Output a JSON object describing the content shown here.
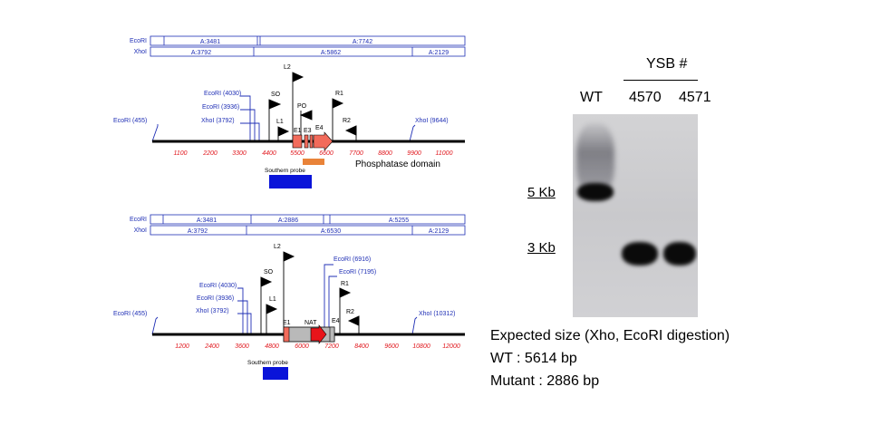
{
  "wt_map": {
    "ecori_track_label": "EcoRI",
    "xhoi_track_label": "XhoI",
    "ecori_fragments": [
      "A:3481",
      "A:7742"
    ],
    "xhoi_fragments": [
      "A:3792",
      "A:5862",
      "A:2129"
    ],
    "sites": {
      "ecori_455": "EcoRI (455)",
      "ecori_4030": "EcoRI (4030)",
      "ecori_3936": "EcoRI (3936)",
      "xhoi_3792": "XhoI (3792)",
      "xhoi_9644": "XhoI (9644)"
    },
    "primers": {
      "so": "SO",
      "l1": "L1",
      "l2": "L2",
      "po": "PO",
      "r1": "R1",
      "r2": "R2"
    },
    "exons": {
      "e1": "E1",
      "e3": "E3",
      "e4": "E4"
    },
    "ticks": [
      "1100",
      "2200",
      "3300",
      "4400",
      "5500",
      "6600",
      "7700",
      "8800",
      "9900",
      "11000"
    ],
    "domain_label": "Phosphatase domain",
    "probe_label": "Southern probe",
    "colors": {
      "probe": "#0a14d9",
      "exon": "#f26b5b",
      "domain_bar": "#e98339",
      "tick_text": "#e0151b",
      "site_text": "#1f2fb5"
    }
  },
  "mut_map": {
    "ecori_track_label": "EcoRI",
    "xhoi_track_label": "XhoI",
    "ecori_fragments": [
      "A:3481",
      "A:2886",
      "A:5255"
    ],
    "xhoi_fragments": [
      "A:3792",
      "A:6530",
      "A:2129"
    ],
    "sites": {
      "ecori_455": "EcoRI (455)",
      "ecori_4030": "EcoRI (4030)",
      "ecori_3936": "EcoRI (3936)",
      "xhoi_3792": "XhoI (3792)",
      "ecori_6916": "EcoRI (6916)",
      "ecori_7195": "EcoRI (7195)",
      "xhoi_10312": "XhoI (10312)"
    },
    "primers": {
      "so": "SO",
      "l1": "L1",
      "l2": "L2",
      "r1": "R1",
      "r2": "R2"
    },
    "exons": {
      "e1": "E1",
      "e4": "E4"
    },
    "cassette_label": "NAT",
    "ticks": [
      "1200",
      "2400",
      "3600",
      "4800",
      "6000",
      "7200",
      "8400",
      "9600",
      "10800",
      "12000"
    ],
    "probe_label": "Southern probe",
    "colors": {
      "probe": "#0a14d9",
      "cassette": "#e8141a",
      "box": "#b9b9b9"
    }
  },
  "blot": {
    "title": "YSB #",
    "lanes": [
      "WT",
      "4570",
      "4571"
    ],
    "markers": [
      "5 Kb",
      "3 Kb"
    ]
  },
  "expected": {
    "heading": "Expected size (Xho, EcoRI digestion)",
    "wt": "WT : 5614 bp",
    "mutant": "Mutant : 2886 bp"
  }
}
